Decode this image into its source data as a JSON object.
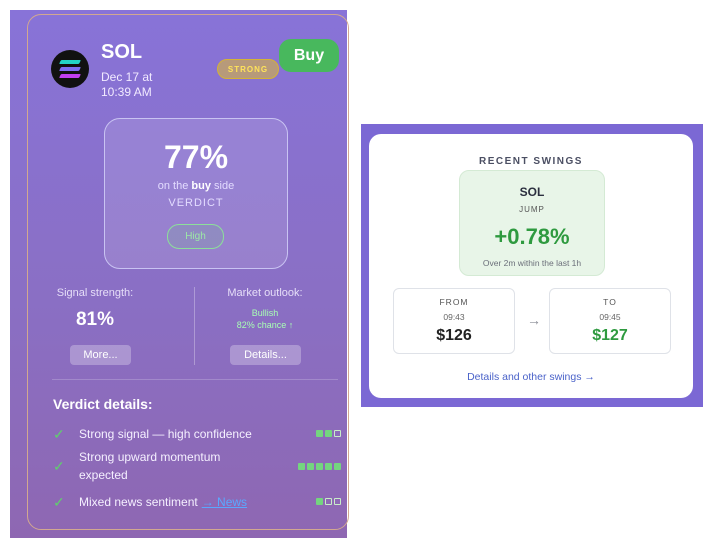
{
  "left_card": {
    "coin": "SOL",
    "timestamp": "Dec 17 at 10:39 AM",
    "badge": "STRONG",
    "buy_label": "Buy",
    "verdict": {
      "percent": "77%",
      "side_prefix": "on the ",
      "side": "buy",
      "side_suffix": " side",
      "label": "VERDICT",
      "confidence": "High"
    },
    "signal": {
      "label": "Signal strength:",
      "value": "81%",
      "button": "More..."
    },
    "outlook": {
      "label": "Market outlook:",
      "value": "Bullish",
      "chance": "82% chance ↑",
      "button": "Details..."
    },
    "details_title": "Verdict details:",
    "details": [
      {
        "text": "Strong signal — high confidence",
        "filled": 2,
        "total": 3
      },
      {
        "text": "Strong upward momentum expected",
        "filled": 5,
        "total": 5
      },
      {
        "text": "Mixed news sentiment",
        "link": "→ News",
        "filled": 1,
        "total": 3
      }
    ],
    "colors": {
      "accent_green": "#48b85d",
      "badge_yellow": "#ffe45a"
    }
  },
  "swings": {
    "title": "RECENT SWINGS",
    "symbol": "SOL",
    "kind": "JUMP",
    "change": "+0.78%",
    "note": "Over 2m within the last 1h",
    "from": {
      "label": "FROM",
      "time": "09:43",
      "price": "$126"
    },
    "to": {
      "label": "TO",
      "time": "09:45",
      "price": "$127"
    },
    "link": "Details and other swings →",
    "colors": {
      "positive": "#2e9a3f"
    }
  }
}
